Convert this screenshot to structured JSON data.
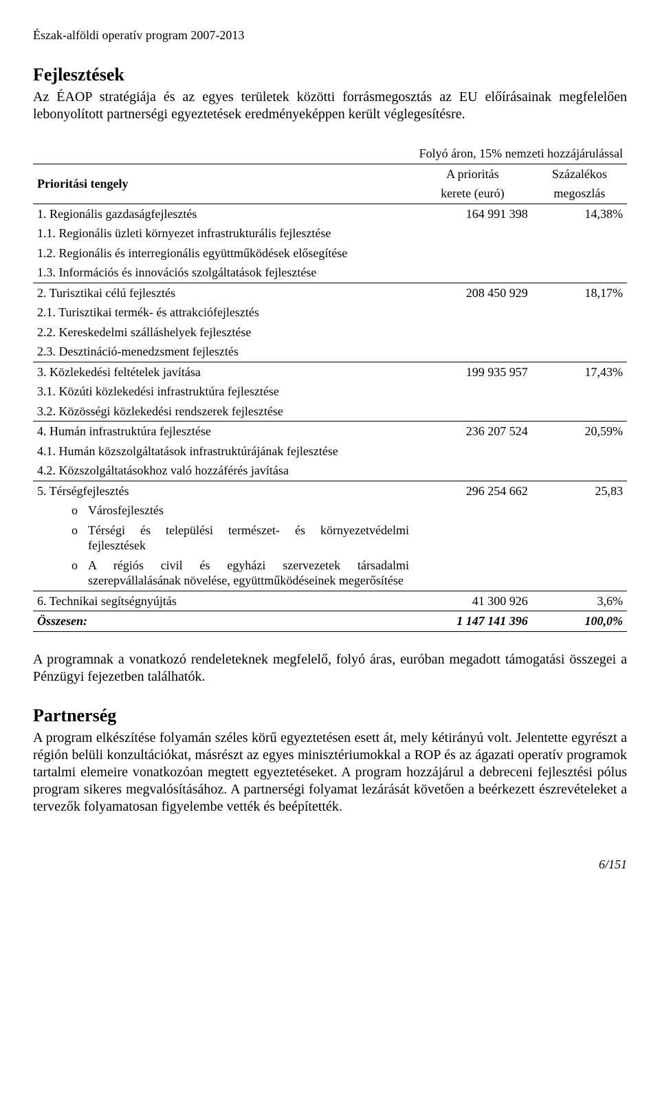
{
  "header": "Észak-alföldi operatív program 2007-2013",
  "title1": "Fejlesztések",
  "intro": "Az ÉAOP stratégiája és az egyes területek közötti forrásmegosztás az EU előírásainak megfelelően lebonyolított partnerségi egyeztetések eredményeképpen került véglegesítésre.",
  "table": {
    "caption": "Folyó áron, 15% nemzeti hozzájárulással",
    "col_axis": "Prioritási tengely",
    "col_budget1": "A prioritás",
    "col_budget2": "kerete (euró)",
    "col_pct1": "Százalékos",
    "col_pct2": "megoszlás",
    "rows": [
      {
        "label": "1.   Regionális gazdaságfejlesztés",
        "value": "164 991 398",
        "pct": "14,38%",
        "top": true
      },
      {
        "label": "1.1. Regionális üzleti környezet infrastrukturális fejlesztése",
        "sub": 1
      },
      {
        "label": "1.2. Regionális és interregionális együttműködések elősegítése",
        "sub": 1
      },
      {
        "label": "1.3. Információs és innovációs szolgáltatások fejlesztése",
        "sub": 1
      },
      {
        "label": "2.   Turisztikai célú fejlesztés",
        "value": "208 450 929",
        "pct": "18,17%",
        "top": true
      },
      {
        "label": "2.1. Turisztikai termék- és attrakciófejlesztés",
        "sub": 1
      },
      {
        "label": "2.2. Kereskedelmi szálláshelyek fejlesztése",
        "sub": 1
      },
      {
        "label": "2.3. Desztináció-menedzsment fejlesztés",
        "sub": 1
      },
      {
        "label": "3.   Közlekedési feltételek javítása",
        "value": "199 935 957",
        "pct": "17,43%",
        "top": true
      },
      {
        "label": "3.1. Közúti közlekedési infrastruktúra fejlesztése",
        "sub": 1
      },
      {
        "label": "3.2. Közösségi közlekedési rendszerek fejlesztése",
        "sub": 1
      },
      {
        "label": "4.   Humán infrastruktúra fejlesztése",
        "value": "236 207 524",
        "pct": "20,59%",
        "top": true
      },
      {
        "label": "4.1. Humán közszolgáltatások infrastruktúrájának fejlesztése",
        "sub": 1
      },
      {
        "label": "4.2. Közszolgáltatásokhoz való hozzáférés javítása",
        "sub": 1
      },
      {
        "label": "5.   Térségfejlesztés",
        "value": "296 254 662",
        "pct": "25,83",
        "top": true
      },
      {
        "label": "Városfejlesztés",
        "sub": 2,
        "bullet": "o"
      },
      {
        "label": "Térségi és települési természet- és környezetvédelmi fejlesztések",
        "sub": 2,
        "bullet": "o"
      },
      {
        "label": "A régiós civil és egyházi szervezetek társadalmi szerepvállalásának növelése, együttműködéseinek megerősítése",
        "sub": 2,
        "bullet": "o"
      },
      {
        "label": "6.   Technikai segítségnyújtás",
        "value": "41 300 926",
        "pct": "3,6%",
        "top": true
      }
    ],
    "total_label": "Összesen:",
    "total_value": "1 147 141 396",
    "total_pct": "100,0%"
  },
  "post_para": "A programnak a vonatkozó rendeleteknek megfelelő, folyó áras, euróban megadott támogatási összegei a Pénzügyi fejezetben találhatók.",
  "title2": "Partnerség",
  "para2": "A program elkészítése folyamán széles körű egyeztetésen esett át, mely kétirányú volt. Jelentette egyrészt a régión belüli konzultációkat, másrészt az egyes minisztériumokkal a ROP és az ágazati operatív programok tartalmi elemeire vonatkozóan megtett egyeztetéseket. A program hozzájárul a debreceni fejlesztési pólus program sikeres megvalósításához. A partnerségi folyamat lezárását követően a beérkezett észrevételeket a tervezők folyamatosan figyelembe vették és beépítették.",
  "pagefoot": "6/151",
  "colors": {
    "text": "#000000",
    "bg": "#ffffff",
    "border": "#000000"
  }
}
